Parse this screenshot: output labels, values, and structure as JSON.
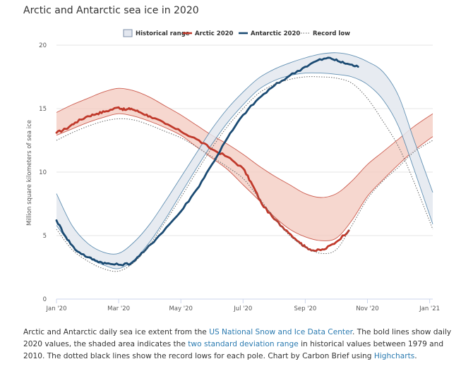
{
  "title": "Arctic and Antarctic sea ice in 2020",
  "caption": {
    "p1": "Arctic and Antarctic daily sea ice extent from the ",
    "link1": "US National Snow and Ice Data Center",
    "p2": ". The bold lines show daily 2020 values, the shaded area indicates the ",
    "link2": "two standard deviation range",
    "p3": " in historical values between 1979 and 2010. The dotted black lines show the record lows for each pole. Chart by Carbon Brief using ",
    "link3": "Highcharts",
    "p4": "."
  },
  "colors": {
    "arctic": "#c0392b",
    "arctic_band": "#f3c9bf",
    "antarctic": "#1b4b73",
    "antarctic_band": "#e3e7ef",
    "antarctic_band_edge": "#3f78a3",
    "record_low": "#666666",
    "grid": "#e6e6e6"
  },
  "chart_data": {
    "type": "line",
    "title": "Arctic and Antarctic sea ice in 2020",
    "ylabel": "Million square kilometers of sea ice",
    "xlabel": "",
    "ylim": [
      0,
      20
    ],
    "xlim": [
      0,
      12.1
    ],
    "y_ticks": [
      0,
      5,
      10,
      15,
      20
    ],
    "x_ticks": [
      {
        "value": 0,
        "label": "Jan '20"
      },
      {
        "value": 2,
        "label": "Mar '20"
      },
      {
        "value": 4,
        "label": "May '20"
      },
      {
        "value": 6,
        "label": "Jul '20"
      },
      {
        "value": 8,
        "label": "Sep '20"
      },
      {
        "value": 10,
        "label": "Nov '20"
      },
      {
        "value": 12,
        "label": "Jan '21"
      }
    ],
    "legend": [
      {
        "key": "historical",
        "label": "Historical range",
        "swatch": "area"
      },
      {
        "key": "arctic",
        "label": "Arctic 2020",
        "swatch": "line"
      },
      {
        "key": "antarctic",
        "label": "Antarctic 2020",
        "swatch": "line"
      },
      {
        "key": "record",
        "label": "Record low",
        "swatch": "dotted"
      }
    ],
    "legend_position": "top-center",
    "ranges": [
      {
        "name": "Arctic historical range",
        "x": [
          0,
          0.5,
          1,
          1.5,
          2,
          2.5,
          3,
          3.5,
          4,
          4.5,
          5,
          5.5,
          6,
          6.5,
          7,
          7.5,
          8,
          8.5,
          9,
          9.5,
          10,
          10.5,
          11,
          11.5,
          12.1
        ],
        "upper": [
          14.7,
          15.3,
          15.8,
          16.3,
          16.6,
          16.4,
          15.9,
          15.2,
          14.5,
          13.7,
          12.9,
          12.2,
          11.4,
          10.5,
          9.7,
          9.0,
          8.3,
          8.0,
          8.3,
          9.3,
          10.6,
          11.6,
          12.6,
          13.6,
          14.6
        ],
        "lower": [
          12.9,
          13.4,
          13.9,
          14.3,
          14.6,
          14.4,
          14.0,
          13.5,
          12.9,
          12.0,
          11.1,
          10.2,
          9.0,
          7.8,
          6.5,
          5.5,
          4.9,
          4.6,
          4.8,
          6.2,
          8.1,
          9.4,
          10.6,
          11.7,
          12.8
        ]
      },
      {
        "name": "Antarctic historical range",
        "x": [
          0,
          0.5,
          1,
          1.5,
          2,
          2.5,
          3,
          3.5,
          4,
          4.5,
          5,
          5.5,
          6,
          6.5,
          7,
          7.5,
          8,
          8.5,
          9,
          9.5,
          10,
          10.5,
          11,
          11.5,
          12.1
        ],
        "upper": [
          8.3,
          5.8,
          4.4,
          3.7,
          3.6,
          4.5,
          5.9,
          7.7,
          9.6,
          11.5,
          13.4,
          15.0,
          16.3,
          17.4,
          18.1,
          18.6,
          19.0,
          19.3,
          19.4,
          19.2,
          18.7,
          17.9,
          16.0,
          12.5,
          8.4
        ],
        "lower": [
          5.8,
          4.2,
          3.3,
          2.7,
          2.4,
          3.1,
          4.5,
          6.3,
          8.3,
          10.3,
          12.2,
          13.9,
          15.3,
          16.5,
          17.2,
          17.6,
          17.8,
          17.8,
          17.7,
          17.5,
          16.9,
          15.7,
          13.6,
          10.2,
          5.9
        ]
      }
    ],
    "series": [
      {
        "name": "Arctic 2020",
        "color_key": "arctic",
        "style": "bold",
        "x": [
          0,
          0.3,
          0.6,
          1,
          1.3,
          1.6,
          2,
          2.2,
          2.4,
          2.7,
          3,
          3.5,
          4,
          4.5,
          5,
          5.5,
          6,
          6.3,
          6.6,
          7,
          7.4,
          7.8,
          8,
          8.3,
          8.6,
          9,
          9.4
        ],
        "y": [
          13.1,
          13.4,
          13.9,
          14.4,
          14.6,
          14.8,
          15.1,
          14.9,
          15.0,
          14.7,
          14.4,
          13.8,
          13.2,
          12.6,
          11.8,
          11.2,
          10.3,
          9.0,
          7.5,
          6.3,
          5.4,
          4.5,
          4.1,
          3.8,
          3.9,
          4.5,
          5.4
        ]
      },
      {
        "name": "Antarctic 2020",
        "color_key": "antarctic",
        "style": "bold",
        "x": [
          0,
          0.3,
          0.6,
          1,
          1.3,
          1.6,
          2,
          2.4,
          2.8,
          3.3,
          4,
          4.5,
          5,
          5.5,
          6,
          6.5,
          7,
          7.5,
          8,
          8.4,
          8.8,
          9.1,
          9.4,
          9.7
        ],
        "y": [
          6.2,
          4.9,
          3.9,
          3.3,
          3.0,
          2.8,
          2.7,
          2.8,
          3.7,
          5.0,
          6.9,
          8.6,
          10.6,
          12.7,
          14.5,
          15.8,
          16.8,
          17.6,
          18.3,
          18.8,
          19.0,
          18.7,
          18.5,
          18.3
        ]
      },
      {
        "name": "Arctic record low",
        "color_key": "record_low",
        "style": "dotted",
        "x": [
          0,
          0.5,
          1,
          1.5,
          2,
          2.5,
          3,
          3.5,
          4,
          4.5,
          5,
          5.5,
          6,
          6.5,
          7,
          7.5,
          8,
          8.5,
          9,
          9.5,
          10,
          10.5,
          11,
          11.5,
          12.1
        ],
        "y": [
          12.5,
          13.1,
          13.6,
          14.0,
          14.2,
          14.1,
          13.7,
          13.2,
          12.7,
          12.0,
          11.2,
          10.4,
          9.5,
          8.0,
          6.4,
          5.0,
          4.1,
          3.6,
          3.9,
          5.8,
          7.9,
          9.3,
          10.4,
          11.6,
          12.5
        ]
      },
      {
        "name": "Antarctic record low",
        "color_key": "record_low",
        "style": "dotted",
        "x": [
          0,
          0.5,
          1,
          1.5,
          2,
          2.5,
          3,
          3.5,
          4,
          4.5,
          5,
          5.5,
          6,
          6.5,
          7,
          7.5,
          8,
          8.5,
          9,
          9.5,
          10,
          10.5,
          11,
          11.5,
          12.1
        ],
        "y": [
          5.5,
          3.9,
          3.0,
          2.4,
          2.2,
          2.9,
          4.3,
          6.1,
          8.0,
          10.0,
          11.9,
          13.6,
          15.0,
          16.2,
          16.9,
          17.3,
          17.5,
          17.5,
          17.4,
          17.0,
          15.8,
          14.0,
          12.0,
          9.2,
          5.5
        ]
      }
    ]
  }
}
